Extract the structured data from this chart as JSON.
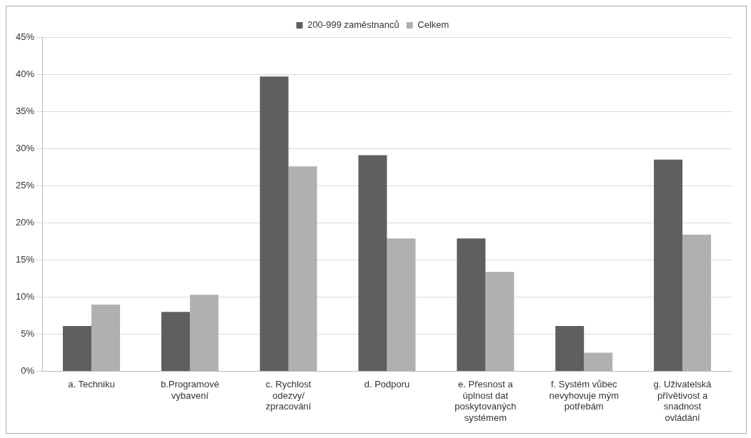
{
  "chart_data": {
    "type": "bar",
    "categories": [
      "a. Techniku",
      "b.Programové vybavení",
      "c. Rychlost odezvy/ zpracování",
      "d. Podporu",
      "e. Přesnost a úplnost dat poskytovaných systémem",
      "f. Systém vůbec nevyhovuje mým potřebám",
      "g. Uživatelská přívětivost a snadnost ovládání"
    ],
    "series": [
      {
        "name": "200-999 zaměstnanců",
        "color": "#5f5f5f",
        "values": [
          6.1,
          8.0,
          39.7,
          29.1,
          17.9,
          6.1,
          28.5
        ]
      },
      {
        "name": "Celkem",
        "color": "#b0b0b0",
        "values": [
          9.0,
          10.3,
          27.6,
          17.9,
          13.4,
          2.5,
          18.4
        ]
      }
    ],
    "ylim": [
      0,
      45
    ],
    "yticks": [
      {
        "value": 0,
        "label": "0%"
      },
      {
        "value": 5,
        "label": "5%"
      },
      {
        "value": 10,
        "label": "10%"
      },
      {
        "value": 15,
        "label": "15%"
      },
      {
        "value": 20,
        "label": "20%"
      },
      {
        "value": 25,
        "label": "25%"
      },
      {
        "value": 30,
        "label": "30%"
      },
      {
        "value": 35,
        "label": "35%"
      },
      {
        "value": 40,
        "label": "40%"
      },
      {
        "value": 45,
        "label": "45%"
      }
    ],
    "grid": "y",
    "legend": "top"
  }
}
